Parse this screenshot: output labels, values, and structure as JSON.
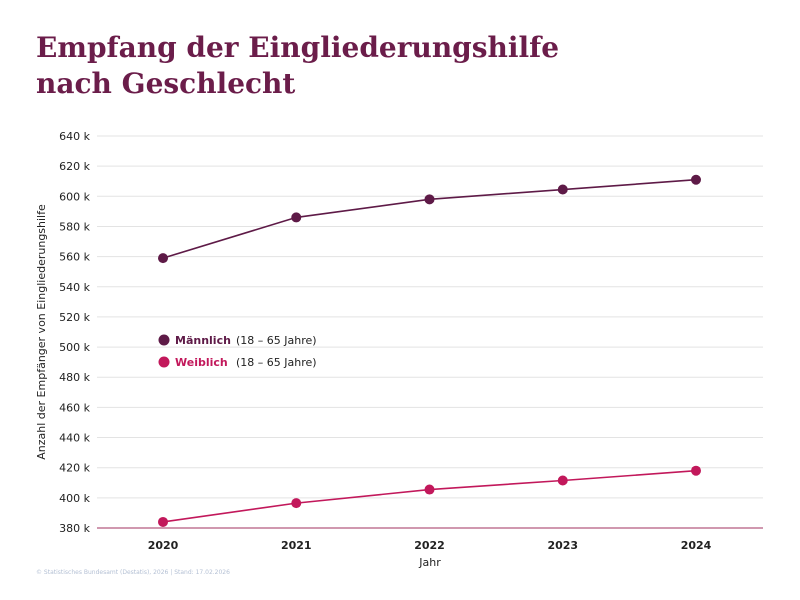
{
  "title": {
    "line1": "Empfang der Eingliederungshilfe",
    "line2": "nach Geschlecht"
  },
  "footer": "© Statistisches Bundesamt (Destatis), 2026 | Stand: 17.02.2026",
  "colors": {
    "title": "#6b1d4a",
    "maennlich": "#5e1a47",
    "weiblich": "#c2185b",
    "grid": "#e3e3e3",
    "axis": "#a0305f"
  },
  "chart_data": {
    "type": "line",
    "title": "Empfang der Eingliederungshilfe nach Geschlecht",
    "xlabel": "Jahr",
    "ylabel": "Anzahl der Empfänger von Eingliederungshilfe",
    "categories": [
      "2020",
      "2021",
      "2022",
      "2023",
      "2024"
    ],
    "ylim": [
      380000,
      640000
    ],
    "yticks": [
      380000,
      400000,
      420000,
      440000,
      460000,
      480000,
      500000,
      520000,
      540000,
      560000,
      580000,
      600000,
      620000,
      640000
    ],
    "yticklabels": [
      "380 k",
      "400 k",
      "420 k",
      "440 k",
      "460 k",
      "480 k",
      "500 k",
      "520 k",
      "540 k",
      "560 k",
      "580 k",
      "600 k",
      "620 k",
      "640 k"
    ],
    "grid": true,
    "legend_position": "left-middle",
    "series": [
      {
        "name": "Männlich",
        "suffix": "(18 – 65 Jahre)",
        "color": "#5e1a47",
        "values": [
          559000,
          586000,
          598000,
          604500,
          611000
        ]
      },
      {
        "name": "Weiblich",
        "suffix": "(18 – 65 Jahre)",
        "color": "#c2185b",
        "values": [
          384000,
          396500,
          405500,
          411500,
          418000
        ]
      }
    ]
  }
}
